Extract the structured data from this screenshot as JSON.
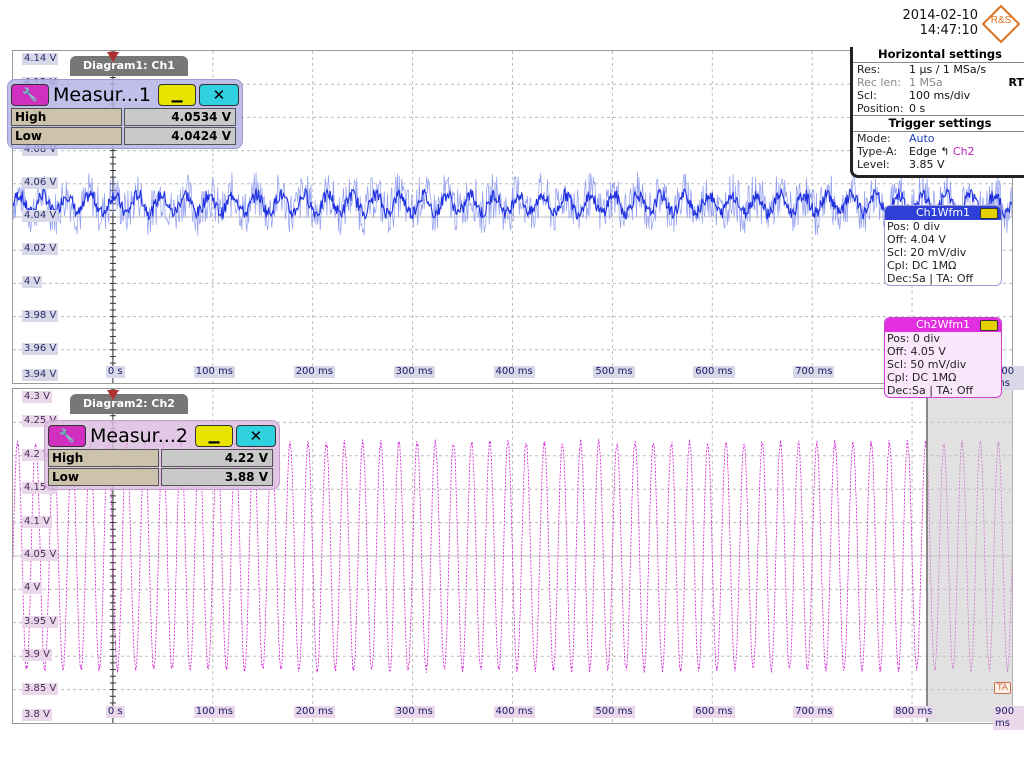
{
  "datetime": {
    "date": "2014-02-10",
    "time": "14:47:10"
  },
  "logo_text": "R&S",
  "colors": {
    "ch1": "#1e2fe0",
    "ch2": "#d21ad2",
    "grid": "#9a9a9a"
  },
  "diagram1": {
    "tab": "Diagram1: Ch1",
    "y_labels": [
      "4.14 V",
      "4.12 V",
      "4.1 V",
      "4.08 V",
      "4.06 V",
      "4.04 V",
      "4.02 V",
      "4 V",
      "3.98 V",
      "3.96 V",
      "3.94 V"
    ],
    "x_labels": [
      "0 s",
      "100 ms",
      "200 ms",
      "300 ms",
      "400 ms",
      "500 ms",
      "600 ms",
      "700 ms",
      "800 ms",
      "900 ms"
    ],
    "measurement": {
      "title": "Measur...1",
      "high_label": "High",
      "high_value": "4.0534 V",
      "low_label": "Low",
      "low_value": "4.0424 V"
    }
  },
  "diagram2": {
    "tab": "Diagram2: Ch2",
    "y_labels": [
      "4.3 V",
      "4.25 V",
      "4.2 V",
      "4.15 V",
      "4.1 V",
      "4.05 V",
      "4 V",
      "3.95 V",
      "3.9 V",
      "3.85 V",
      "3.8 V"
    ],
    "x_labels": [
      "0 s",
      "100 ms",
      "200 ms",
      "300 ms",
      "400 ms",
      "500 ms",
      "600 ms",
      "700 ms",
      "800 ms",
      "900 ms"
    ],
    "measurement": {
      "title": "Measur...2",
      "high_label": "High",
      "high_value": "4.22 V",
      "low_label": "Low",
      "low_value": "3.88 V"
    }
  },
  "horizontal": {
    "title": "Horizontal settings",
    "res_label": "Res:",
    "res_value": "1 µs / 1 MSa/s",
    "reclen_label": "Rec len:",
    "reclen_value": "1 MSa",
    "scl_label": "Scl:",
    "scl_value": "100 ms/div",
    "pos_label": "Position:",
    "pos_value": "0 s",
    "rt": "RT"
  },
  "trigger": {
    "title": "Trigger settings",
    "mode_label": "Mode:",
    "mode_value": "Auto",
    "type_label": "Type-A:",
    "type_value": "Edge",
    "type_source": "Ch2",
    "level_label": "Level:",
    "level_value": "3.85 V"
  },
  "ch1wfm": {
    "title": "Ch1Wfm1",
    "pos": "Pos: 0 div",
    "off": "Off: 4.04 V",
    "scl": "Scl: 20 mV/div",
    "cpl": "Cpl: DC 1MΩ",
    "dec": "Dec:Sa | TA: Off"
  },
  "ch2wfm": {
    "title": "Ch2Wfm1",
    "pos": "Pos: 0 div",
    "off": "Off: 4.05 V",
    "scl": "Scl: 50 mV/div",
    "cpl": "Cpl: DC 1MΩ",
    "dec": "Dec:Sa | TA: Off"
  },
  "ta_marker": "TA",
  "chart_data": [
    {
      "type": "line",
      "title": "Diagram1: Ch1",
      "xlabel": "",
      "ylabel": "",
      "xlim": [
        -0.1,
        0.9
      ],
      "ylim": [
        3.94,
        4.14
      ],
      "x_unit": "s",
      "y_unit": "V",
      "series": [
        {
          "name": "Ch1",
          "waveform": "noisy ripple",
          "mean": 4.048,
          "peak_to_peak_core": 0.011,
          "periods_visible": 42
        }
      ]
    },
    {
      "type": "line",
      "title": "Diagram2: Ch2",
      "xlabel": "",
      "ylabel": "",
      "xlim": [
        -0.1,
        0.9
      ],
      "ylim": [
        3.8,
        4.3
      ],
      "x_unit": "s",
      "y_unit": "V",
      "series": [
        {
          "name": "Ch2",
          "waveform": "sine",
          "high": 4.22,
          "low": 3.88,
          "periods_visible": 55
        }
      ]
    }
  ]
}
